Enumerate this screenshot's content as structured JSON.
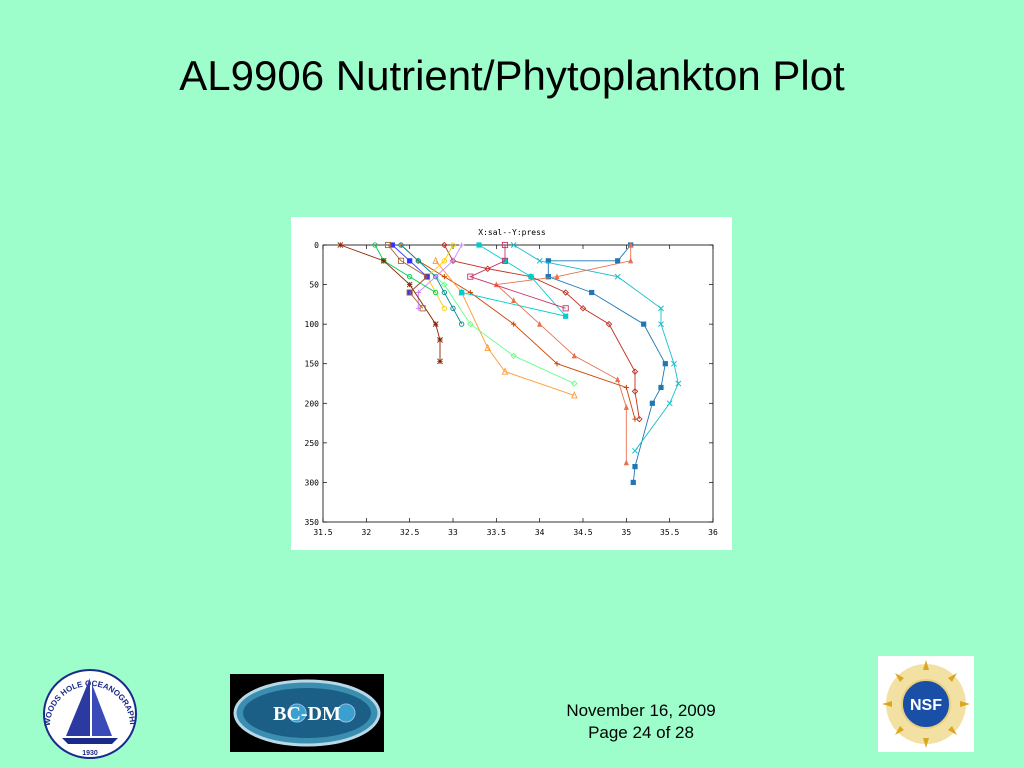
{
  "slide": {
    "title": "AL9906 Nutrient/Phytoplankton Plot",
    "footer_date": "November 16, 2009",
    "footer_page": "Page 24 of 28"
  },
  "logos": {
    "whoi_text": "WOODS HOLE OCEANOGRAPHIC INSTITUTION",
    "whoi_year": "1930",
    "bco_text": "BC-DM",
    "nsf_text": "NSF"
  },
  "colors": {
    "background": "#9dfdcb",
    "title": "#000000"
  },
  "chart_data": {
    "type": "line",
    "title": "X:sal--Y:press",
    "xlabel": "",
    "ylabel": "",
    "xlim": [
      31.5,
      36
    ],
    "ylim": [
      350,
      0
    ],
    "y_inverted": true,
    "grid": false,
    "legend": "none",
    "xticks": [
      "31.5",
      "32",
      "32.5",
      "33",
      "33.5",
      "34",
      "34.5",
      "35",
      "35.5",
      "36"
    ],
    "yticks": [
      "0",
      "50",
      "100",
      "150",
      "200",
      "250",
      "300",
      "350"
    ],
    "series": [
      {
        "color": "#1f77b4",
        "marker": "square",
        "points": [
          [
            35.05,
            0
          ],
          [
            34.9,
            20
          ],
          [
            34.1,
            20
          ],
          [
            34.1,
            40
          ],
          [
            34.1,
            40
          ],
          [
            34.6,
            60
          ],
          [
            35.2,
            100
          ],
          [
            35.45,
            150
          ],
          [
            35.4,
            180
          ],
          [
            35.3,
            200
          ],
          [
            35.1,
            280
          ],
          [
            35.08,
            300
          ]
        ]
      },
      {
        "color": "#17becf",
        "marker": "cross",
        "points": [
          [
            33.7,
            0
          ],
          [
            34.0,
            20
          ],
          [
            34.9,
            40
          ],
          [
            35.4,
            80
          ],
          [
            35.4,
            100
          ],
          [
            35.55,
            150
          ],
          [
            35.6,
            175
          ],
          [
            35.5,
            200
          ],
          [
            35.1,
            260
          ]
        ]
      },
      {
        "color": "#e8704f",
        "marker": "triangle",
        "points": [
          [
            35.05,
            0
          ],
          [
            35.05,
            20
          ],
          [
            34.2,
            40
          ],
          [
            33.5,
            50
          ],
          [
            33.7,
            70
          ],
          [
            34.0,
            100
          ],
          [
            34.4,
            140
          ],
          [
            34.9,
            170
          ],
          [
            35.0,
            205
          ],
          [
            35.0,
            275
          ]
        ]
      },
      {
        "color": "#c03020",
        "marker": "diamond",
        "points": [
          [
            32.9,
            0
          ],
          [
            33.0,
            20
          ],
          [
            33.4,
            30
          ],
          [
            33.9,
            40
          ],
          [
            34.3,
            60
          ],
          [
            34.5,
            80
          ],
          [
            34.8,
            100
          ],
          [
            35.1,
            160
          ],
          [
            35.1,
            185
          ],
          [
            35.15,
            220
          ]
        ]
      },
      {
        "color": "#cc4400",
        "marker": "plus",
        "points": [
          [
            32.4,
            0
          ],
          [
            32.6,
            20
          ],
          [
            32.9,
            40
          ],
          [
            33.2,
            60
          ],
          [
            33.7,
            100
          ],
          [
            34.2,
            150
          ],
          [
            35.0,
            180
          ],
          [
            35.1,
            220
          ]
        ]
      },
      {
        "color": "#ff9a2e",
        "marker": "triangle-open",
        "points": [
          [
            32.8,
            20
          ],
          [
            33.1,
            60
          ],
          [
            33.4,
            130
          ],
          [
            33.6,
            160
          ],
          [
            34.4,
            190
          ]
        ]
      },
      {
        "color": "#66ff88",
        "marker": "diamond",
        "points": [
          [
            32.6,
            20
          ],
          [
            32.9,
            50
          ],
          [
            33.2,
            100
          ],
          [
            33.7,
            140
          ],
          [
            34.4,
            175
          ]
        ]
      },
      {
        "color": "#00cccc",
        "marker": "square",
        "points": [
          [
            33.3,
            0
          ],
          [
            33.6,
            20
          ],
          [
            33.9,
            40
          ],
          [
            34.3,
            90
          ],
          [
            33.1,
            60
          ]
        ]
      },
      {
        "color": "#cc3366",
        "marker": "square-open",
        "points": [
          [
            33.6,
            0
          ],
          [
            33.6,
            20
          ],
          [
            33.2,
            40
          ],
          [
            34.3,
            80
          ]
        ]
      },
      {
        "color": "#008b8b",
        "marker": "circle",
        "points": [
          [
            32.4,
            0
          ],
          [
            32.6,
            20
          ],
          [
            32.8,
            40
          ],
          [
            32.9,
            60
          ],
          [
            33.0,
            80
          ],
          [
            33.1,
            100
          ]
        ]
      },
      {
        "color": "#ffcc00",
        "marker": "circle",
        "points": [
          [
            33.0,
            0
          ],
          [
            32.9,
            20
          ],
          [
            32.7,
            40
          ],
          [
            32.8,
            60
          ],
          [
            32.9,
            80
          ]
        ]
      },
      {
        "color": "#cc88ff",
        "marker": "plus",
        "points": [
          [
            33.1,
            0
          ],
          [
            33.0,
            20
          ],
          [
            32.8,
            40
          ],
          [
            32.6,
            60
          ],
          [
            32.6,
            80
          ]
        ]
      },
      {
        "color": "#00cc44",
        "marker": "circle",
        "points": [
          [
            32.1,
            0
          ],
          [
            32.2,
            20
          ],
          [
            32.5,
            40
          ],
          [
            32.8,
            60
          ]
        ]
      },
      {
        "color": "#3333ff",
        "marker": "square",
        "points": [
          [
            32.3,
            0
          ],
          [
            32.5,
            20
          ],
          [
            32.7,
            40
          ],
          [
            32.5,
            60
          ]
        ]
      },
      {
        "color": "#8b2500",
        "marker": "star",
        "points": [
          [
            31.7,
            0
          ],
          [
            32.2,
            20
          ],
          [
            32.5,
            50
          ],
          [
            32.8,
            100
          ],
          [
            32.85,
            120
          ],
          [
            32.85,
            147
          ]
        ]
      },
      {
        "color": "#aa6633",
        "marker": "square-open",
        "points": [
          [
            32.25,
            0
          ],
          [
            32.4,
            20
          ],
          [
            32.7,
            40
          ],
          [
            32.5,
            60
          ],
          [
            32.65,
            80
          ]
        ]
      }
    ]
  }
}
